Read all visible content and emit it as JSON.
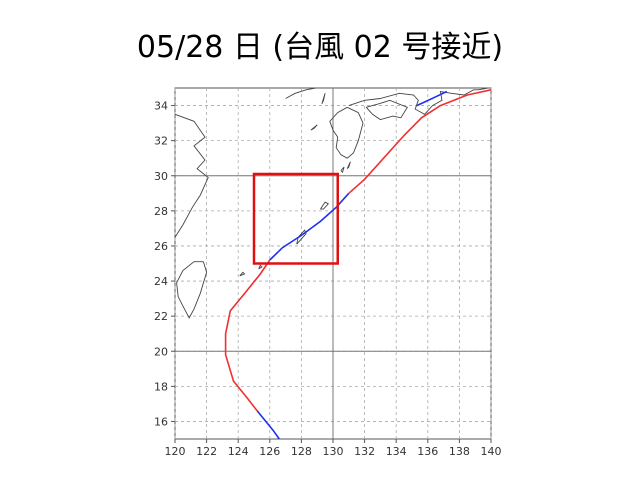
{
  "slide": {
    "title": "05/28 日 (台風 02 号接近)"
  },
  "map": {
    "lon_range": [
      120,
      140
    ],
    "lat_range": [
      15,
      35
    ],
    "x_ticks": [
      "120",
      "122",
      "124",
      "126",
      "128",
      "130",
      "132",
      "134",
      "136",
      "138",
      "140"
    ],
    "y_ticks": [
      "16",
      "18",
      "20",
      "22",
      "24",
      "26",
      "28",
      "30",
      "32",
      "34"
    ],
    "grid": "dashed",
    "reference_lines": {
      "lon": 130,
      "lat": [
        20,
        30
      ]
    },
    "highlight_box": {
      "lon": [
        125,
        130.3
      ],
      "lat": [
        25,
        30.1
      ],
      "color": "#e01010"
    },
    "colors": {
      "track_red": "#f03030",
      "track_blue": "#2030f0",
      "coast": "#444444",
      "grid": "#aaaaaa"
    },
    "track": {
      "red_1": [
        [
          140,
          34.9
        ],
        [
          138.5,
          34.6
        ],
        [
          136.8,
          34.0
        ],
        [
          135.6,
          33.3
        ],
        [
          134.5,
          32.3
        ],
        [
          133.2,
          31.0
        ],
        [
          132.0,
          29.8
        ],
        [
          131.0,
          29.0
        ]
      ],
      "blue_1": [
        [
          137.2,
          34.8
        ],
        [
          136.5,
          34.5
        ],
        [
          135.8,
          34.2
        ],
        [
          135.3,
          34.0
        ]
      ],
      "blue_2": [
        [
          131.0,
          29.0
        ],
        [
          130.2,
          28.2
        ],
        [
          129.2,
          27.4
        ],
        [
          128.0,
          26.6
        ],
        [
          126.8,
          25.9
        ],
        [
          126.0,
          25.2
        ]
      ],
      "red_2": [
        [
          126.0,
          25.2
        ],
        [
          125.4,
          24.4
        ],
        [
          124.5,
          23.4
        ],
        [
          123.5,
          22.3
        ],
        [
          123.2,
          21.0
        ],
        [
          123.2,
          19.8
        ],
        [
          123.7,
          18.3
        ],
        [
          124.6,
          17.3
        ],
        [
          125.2,
          16.6
        ]
      ],
      "blue_3": [
        [
          125.2,
          16.6
        ],
        [
          126.2,
          15.5
        ],
        [
          126.6,
          15.0
        ]
      ]
    },
    "coastlines": [
      [
        [
          120.0,
          33.5
        ],
        [
          121.2,
          33.1
        ],
        [
          121.9,
          32.2
        ],
        [
          121.2,
          31.7
        ],
        [
          121.9,
          30.9
        ],
        [
          121.4,
          30.4
        ],
        [
          122.1,
          29.9
        ],
        [
          121.6,
          28.9
        ],
        [
          121.1,
          28.2
        ],
        [
          120.5,
          27.2
        ],
        [
          120.0,
          26.5
        ]
      ],
      [
        [
          121.8,
          25.1
        ],
        [
          122.0,
          24.5
        ],
        [
          121.6,
          23.3
        ],
        [
          121.2,
          22.4
        ],
        [
          120.9,
          21.9
        ],
        [
          120.6,
          22.4
        ],
        [
          120.2,
          23.1
        ],
        [
          120.1,
          23.9
        ],
        [
          120.5,
          24.6
        ],
        [
          121.2,
          25.1
        ],
        [
          121.8,
          25.1
        ]
      ],
      [
        [
          130.9,
          33.9
        ],
        [
          131.6,
          33.6
        ],
        [
          131.9,
          33.0
        ],
        [
          131.6,
          32.0
        ],
        [
          131.3,
          31.3
        ],
        [
          130.9,
          31.0
        ],
        [
          130.5,
          31.2
        ],
        [
          130.2,
          31.6
        ],
        [
          130.3,
          32.2
        ],
        [
          130.0,
          32.6
        ],
        [
          129.8,
          33.1
        ],
        [
          130.3,
          33.6
        ],
        [
          130.9,
          33.9
        ]
      ],
      [
        [
          132.1,
          33.9
        ],
        [
          132.5,
          33.5
        ],
        [
          133.0,
          33.2
        ],
        [
          133.8,
          33.4
        ],
        [
          134.3,
          33.3
        ],
        [
          134.7,
          33.9
        ],
        [
          133.6,
          34.3
        ],
        [
          132.9,
          34.1
        ],
        [
          132.1,
          33.9
        ]
      ],
      [
        [
          131.0,
          34.0
        ],
        [
          132.0,
          34.3
        ],
        [
          133.0,
          34.4
        ],
        [
          134.2,
          34.7
        ],
        [
          135.1,
          34.6
        ],
        [
          135.4,
          34.3
        ],
        [
          135.2,
          33.8
        ],
        [
          135.8,
          33.5
        ],
        [
          136.3,
          34.0
        ],
        [
          136.9,
          34.3
        ],
        [
          136.8,
          34.8
        ],
        [
          137.5,
          34.7
        ],
        [
          138.3,
          34.6
        ],
        [
          138.9,
          34.9
        ],
        [
          139.2,
          34.9
        ],
        [
          139.8,
          35.0
        ]
      ],
      [
        [
          127.7,
          26.1
        ],
        [
          127.8,
          26.5
        ],
        [
          128.2,
          26.9
        ],
        [
          128.3,
          26.7
        ],
        [
          127.9,
          26.3
        ],
        [
          127.7,
          26.1
        ]
      ],
      [
        [
          129.2,
          28.1
        ],
        [
          129.5,
          28.5
        ],
        [
          129.7,
          28.4
        ],
        [
          129.4,
          28.1
        ],
        [
          129.2,
          28.1
        ]
      ],
      [
        [
          124.1,
          24.3
        ],
        [
          124.3,
          24.5
        ],
        [
          124.4,
          24.4
        ],
        [
          124.1,
          24.3
        ]
      ],
      [
        [
          125.3,
          24.7
        ],
        [
          125.4,
          24.9
        ],
        [
          125.5,
          24.8
        ],
        [
          125.3,
          24.7
        ]
      ],
      [
        [
          130.5,
          30.3
        ],
        [
          130.7,
          30.5
        ],
        [
          130.6,
          30.2
        ],
        [
          130.5,
          30.3
        ]
      ],
      [
        [
          130.9,
          30.4
        ],
        [
          131.1,
          30.8
        ],
        [
          131.0,
          30.5
        ],
        [
          130.9,
          30.4
        ]
      ],
      [
        [
          129.3,
          34.1
        ],
        [
          129.5,
          34.7
        ],
        [
          129.4,
          34.3
        ],
        [
          129.3,
          34.1
        ]
      ],
      [
        [
          128.6,
          32.6
        ],
        [
          129.0,
          32.9
        ],
        [
          128.8,
          32.7
        ],
        [
          128.6,
          32.6
        ]
      ],
      [
        [
          127.0,
          34.4
        ],
        [
          127.6,
          34.7
        ],
        [
          128.3,
          34.9
        ],
        [
          128.9,
          35.0
        ]
      ]
    ]
  }
}
